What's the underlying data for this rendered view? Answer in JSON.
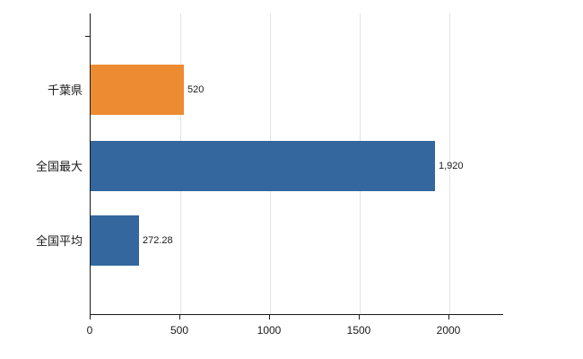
{
  "chart_data": {
    "type": "bar",
    "orientation": "horizontal",
    "title": "",
    "xlabel": "",
    "ylabel": "",
    "categories": [
      "千葉県",
      "全国最大",
      "全国平均"
    ],
    "values": [
      520,
      1920,
      272.28
    ],
    "value_labels": [
      "520",
      "1,920",
      "272.28"
    ],
    "bar_colors": [
      "#ED8B33",
      "#33679E",
      "#33679E"
    ],
    "xlim": [
      0,
      2300
    ],
    "x_ticks": [
      0,
      500,
      1000,
      1500,
      2000
    ],
    "x_tick_labels": [
      "0",
      "500",
      "1000",
      "1500",
      "2000"
    ],
    "grid": "vertical",
    "legend": "none"
  },
  "colors": {
    "background": "#ffffff",
    "axis": "#1a1a1a",
    "grid": "#e3e3e3",
    "orange": "#ED8B33",
    "blue": "#33679E"
  }
}
